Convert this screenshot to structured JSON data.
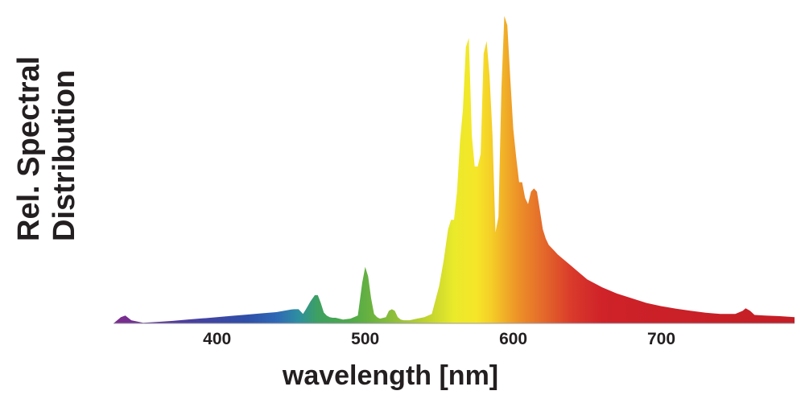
{
  "chart_data": {
    "type": "area",
    "title": "",
    "xlabel": "wavelength [nm]",
    "ylabel_lines": [
      "Rel. Spectral",
      "Distribution"
    ],
    "x_ticks": [
      400,
      500,
      600,
      700
    ],
    "x_tick_labels": [
      "400",
      "500",
      "600",
      "700"
    ],
    "xlim": [
      330,
      790
    ],
    "ylim": [
      0,
      1
    ],
    "grid": false,
    "legend": "none",
    "fill": "visible-spectrum gradient (violet to red by wavelength)",
    "series": [
      {
        "x": [
          330,
          335,
          338,
          342,
          350,
          360,
          370,
          380,
          390,
          400,
          410,
          420,
          430,
          440,
          445,
          450,
          452,
          455,
          458,
          460,
          463,
          466,
          468,
          470,
          472,
          474,
          476,
          478,
          480,
          485,
          490,
          495,
          498,
          500,
          502,
          504,
          506,
          508,
          510,
          514,
          516,
          518,
          520,
          522,
          524,
          526,
          530,
          535,
          540,
          545,
          550,
          553,
          556,
          558,
          560,
          562,
          564,
          566,
          568,
          570,
          572,
          574,
          576,
          578,
          580,
          582,
          584,
          586,
          588,
          590,
          592,
          594,
          596,
          598,
          600,
          602,
          604,
          606,
          608,
          610,
          612,
          614,
          616,
          618,
          620,
          622,
          624,
          626,
          628,
          630,
          635,
          640,
          645,
          650,
          660,
          670,
          680,
          690,
          700,
          710,
          720,
          730,
          740,
          750,
          755,
          757,
          760,
          763,
          770,
          780,
          790
        ],
        "y": [
          0.0,
          0.02,
          0.025,
          0.01,
          0.002,
          0.005,
          0.008,
          0.012,
          0.016,
          0.02,
          0.024,
          0.028,
          0.032,
          0.036,
          0.04,
          0.044,
          0.045,
          0.045,
          0.03,
          0.045,
          0.07,
          0.09,
          0.09,
          0.065,
          0.035,
          0.025,
          0.02,
          0.018,
          0.018,
          0.012,
          0.015,
          0.025,
          0.13,
          0.18,
          0.15,
          0.08,
          0.03,
          0.02,
          0.015,
          0.02,
          0.04,
          0.045,
          0.04,
          0.02,
          0.012,
          0.01,
          0.01,
          0.015,
          0.02,
          0.03,
          0.12,
          0.2,
          0.3,
          0.33,
          0.33,
          0.42,
          0.58,
          0.68,
          0.88,
          0.91,
          0.6,
          0.5,
          0.5,
          0.54,
          0.86,
          0.9,
          0.79,
          0.6,
          0.29,
          0.34,
          0.75,
          0.98,
          0.95,
          0.78,
          0.62,
          0.53,
          0.45,
          0.45,
          0.4,
          0.38,
          0.42,
          0.43,
          0.42,
          0.36,
          0.3,
          0.27,
          0.25,
          0.24,
          0.23,
          0.22,
          0.2,
          0.18,
          0.16,
          0.14,
          0.115,
          0.095,
          0.08,
          0.065,
          0.055,
          0.047,
          0.04,
          0.034,
          0.03,
          0.03,
          0.04,
          0.048,
          0.04,
          0.027,
          0.025,
          0.023,
          0.02
        ]
      }
    ]
  }
}
